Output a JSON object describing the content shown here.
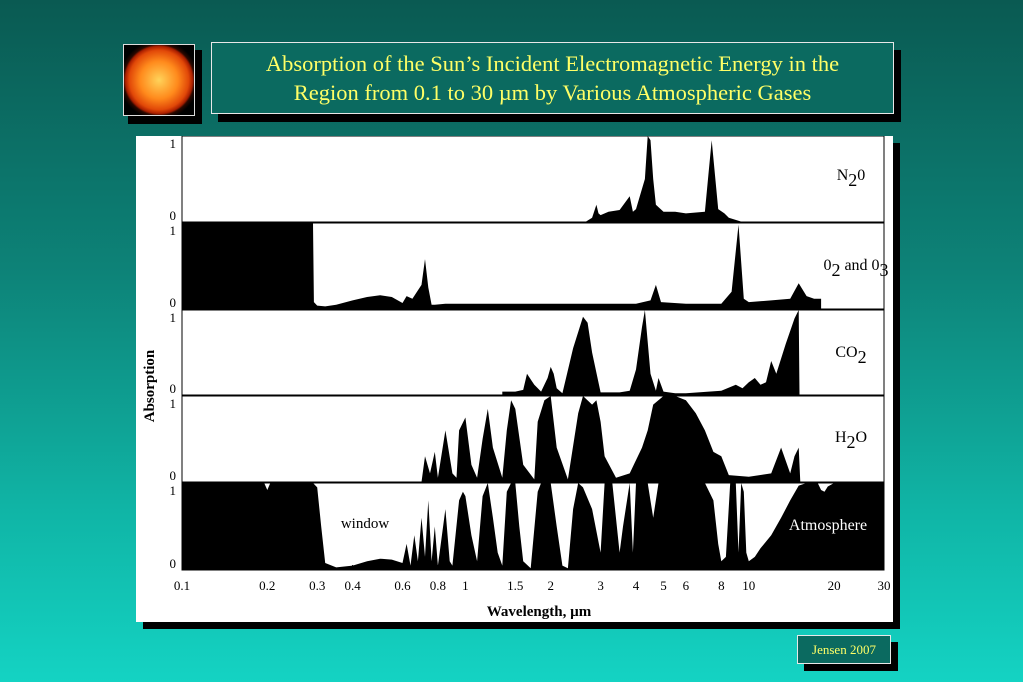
{
  "header": {
    "title_line1": "Absorption of the Sun’s Incident Electromagnetic Energy in the",
    "title_line2": "Region from 0.1 to 30 µm by Various Atmospheric Gases"
  },
  "credit": "Jensen 2007",
  "chart_data": {
    "type": "area",
    "title": "Absorption of the Sun’s Incident Electromagnetic Energy in the Region from 0.1 to 30 µm by Various Atmospheric Gases",
    "xlabel": "Wavelength, µm",
    "ylabel": "Absorption",
    "x_scale": "log",
    "xlim": [
      0.1,
      30
    ],
    "ylim": [
      0,
      1
    ],
    "x_ticks": [
      0.1,
      0.2,
      0.3,
      0.4,
      0.6,
      0.8,
      1,
      1.5,
      2,
      3,
      4,
      5,
      6,
      8,
      10,
      20,
      30
    ],
    "x_tick_labels": [
      "0.1",
      "0.2",
      "0.3",
      "0.4",
      "0.6",
      "0.8",
      "1",
      "1.5",
      "2",
      "3",
      "4",
      "5",
      "6",
      "8",
      "10",
      "20",
      "30"
    ],
    "y_tick_labels": [
      "0",
      "1"
    ],
    "annotation": "window",
    "series": [
      {
        "name": "N20",
        "sub": "2",
        "label_pre": "N",
        "label_post": "0",
        "x": [
          2.65,
          2.8,
          2.9,
          2.95,
          3.0,
          3.2,
          3.5,
          3.8,
          3.9,
          4.0,
          4.3,
          4.4,
          4.5,
          4.6,
          4.7,
          5.0,
          5.5,
          6.0,
          7.0,
          7.2,
          7.4,
          7.8,
          8.2,
          8.5,
          9.5
        ],
        "y": [
          0,
          0.05,
          0.2,
          0.1,
          0.08,
          0.12,
          0.14,
          0.3,
          0.12,
          0.15,
          0.5,
          1.0,
          0.95,
          0.5,
          0.2,
          0.12,
          0.12,
          0.1,
          0.12,
          0.55,
          0.95,
          0.15,
          0.1,
          0.05,
          0
        ]
      },
      {
        "name": "02 and 03",
        "label_pre": "0",
        "sub": "2",
        "label_mid": " and 0",
        "sub2": "3",
        "x": [
          0.1,
          0.29,
          0.292,
          0.3,
          0.32,
          0.35,
          0.4,
          0.45,
          0.5,
          0.55,
          0.6,
          0.62,
          0.65,
          0.7,
          0.72,
          0.74,
          0.76,
          0.78,
          0.85,
          1.0,
          1.5,
          2,
          3,
          4,
          4.5,
          4.7,
          4.9,
          6,
          8,
          8.7,
          9.2,
          9.6,
          10,
          12,
          14,
          15,
          16,
          17,
          18
        ],
        "y": [
          1.0,
          1.0,
          0.08,
          0.04,
          0.03,
          0.05,
          0.1,
          0.14,
          0.16,
          0.14,
          0.07,
          0.15,
          0.12,
          0.28,
          0.58,
          0.25,
          0.05,
          0.05,
          0.06,
          0.06,
          0.06,
          0.06,
          0.06,
          0.06,
          0.1,
          0.28,
          0.08,
          0.06,
          0.06,
          0.2,
          0.98,
          0.12,
          0.08,
          0.1,
          0.12,
          0.3,
          0.15,
          0.12,
          0.12
        ]
      },
      {
        "name": "CO2",
        "label_pre": "CO",
        "sub": "2",
        "x": [
          1.35,
          1.5,
          1.6,
          1.65,
          1.75,
          1.85,
          1.95,
          2.0,
          2.05,
          2.1,
          2.2,
          2.4,
          2.6,
          2.7,
          2.8,
          3.0,
          3.2,
          3.5,
          3.8,
          4.0,
          4.2,
          4.3,
          4.5,
          4.7,
          4.8,
          5.0,
          5.5,
          6.0,
          8.0,
          9.0,
          9.5,
          10,
          10.5,
          11,
          11.5,
          12,
          12.5,
          13.5,
          14.5,
          15,
          15.1
        ],
        "y": [
          0.04,
          0.04,
          0.06,
          0.25,
          0.12,
          0.04,
          0.2,
          0.33,
          0.25,
          0.08,
          0.02,
          0.55,
          0.92,
          0.85,
          0.5,
          0.03,
          0.03,
          0.03,
          0.05,
          0.3,
          0.8,
          1.0,
          0.25,
          0.05,
          0.2,
          0.04,
          0.02,
          0.02,
          0.05,
          0.12,
          0.08,
          0.15,
          0.2,
          0.12,
          0.15,
          0.4,
          0.25,
          0.6,
          0.9,
          1.0,
          0
        ]
      },
      {
        "name": "H2O",
        "label_pre": "H",
        "sub": "2",
        "label_post": "O",
        "x": [
          0.7,
          0.72,
          0.75,
          0.78,
          0.8,
          0.85,
          0.9,
          0.93,
          0.95,
          1.0,
          1.05,
          1.1,
          1.15,
          1.2,
          1.25,
          1.35,
          1.4,
          1.45,
          1.5,
          1.6,
          1.75,
          1.8,
          1.9,
          2.0,
          2.1,
          2.3,
          2.5,
          2.6,
          2.8,
          2.9,
          3.0,
          3.1,
          3.4,
          3.8,
          4.2,
          4.4,
          4.6,
          5.0,
          5.5,
          6.0,
          6.5,
          7.0,
          7.5,
          8.0,
          8.5,
          10,
          12,
          13,
          14,
          14.5,
          15,
          15.2
        ],
        "y": [
          0,
          0.3,
          0.1,
          0.35,
          0.05,
          0.6,
          0.1,
          0.05,
          0.6,
          0.75,
          0.2,
          0.05,
          0.5,
          0.85,
          0.4,
          0.05,
          0.6,
          0.95,
          0.85,
          0.2,
          0.03,
          0.7,
          0.95,
          1.0,
          0.4,
          0.03,
          0.8,
          1.0,
          0.9,
          0.95,
          0.7,
          0.3,
          0.05,
          0.1,
          0.4,
          0.6,
          0.9,
          1.0,
          1.0,
          0.95,
          0.8,
          0.6,
          0.35,
          0.3,
          0.08,
          0.06,
          0.1,
          0.4,
          0.1,
          0.3,
          0.4,
          0
        ]
      },
      {
        "name": "Atmosphere",
        "x": [
          0.1,
          0.195,
          0.2,
          0.205,
          0.29,
          0.3,
          0.31,
          0.32,
          0.35,
          0.4,
          0.45,
          0.5,
          0.55,
          0.6,
          0.62,
          0.64,
          0.66,
          0.68,
          0.7,
          0.72,
          0.74,
          0.76,
          0.78,
          0.8,
          0.85,
          0.88,
          0.9,
          0.95,
          0.98,
          1.0,
          1.05,
          1.1,
          1.15,
          1.2,
          1.25,
          1.3,
          1.35,
          1.4,
          1.45,
          1.5,
          1.55,
          1.6,
          1.7,
          1.8,
          1.85,
          1.9,
          2.0,
          2.1,
          2.2,
          2.3,
          2.4,
          2.5,
          2.6,
          2.8,
          3.0,
          3.1,
          3.3,
          3.5,
          3.6,
          3.8,
          3.9,
          4.0,
          4.2,
          4.4,
          4.6,
          4.8,
          5.0,
          5.5,
          6.0,
          7.0,
          7.5,
          7.8,
          8.0,
          8.3,
          8.6,
          9.0,
          9.2,
          9.4,
          9.6,
          9.8,
          10.0,
          10.5,
          11,
          12,
          13,
          14,
          15,
          16,
          17,
          17.5,
          18,
          18.5,
          19,
          20,
          30
        ],
        "y": [
          1.0,
          1.0,
          0.92,
          1.0,
          1.0,
          0.95,
          0.5,
          0.08,
          0.03,
          0.05,
          0.1,
          0.13,
          0.12,
          0.08,
          0.3,
          0.05,
          0.4,
          0.1,
          0.6,
          0.15,
          0.8,
          0.1,
          0.5,
          0.05,
          0.7,
          0.1,
          0.05,
          0.8,
          0.9,
          0.85,
          0.4,
          0.1,
          0.85,
          1.0,
          0.6,
          0.2,
          0.05,
          0.9,
          1.0,
          1.0,
          0.5,
          0.1,
          0.02,
          0.9,
          1.0,
          1.0,
          1.0,
          0.5,
          0.05,
          0.02,
          0.7,
          1.0,
          0.95,
          0.7,
          0.2,
          1.0,
          1.0,
          0.2,
          0.5,
          1.0,
          0.2,
          1.0,
          1.0,
          1.0,
          0.6,
          1.0,
          1.0,
          1.0,
          1.0,
          1.0,
          0.8,
          0.3,
          0.1,
          0.15,
          1.0,
          1.0,
          0.2,
          1.0,
          0.9,
          0.2,
          0.1,
          0.15,
          0.25,
          0.4,
          0.6,
          0.8,
          0.97,
          1.0,
          1.0,
          1.0,
          0.92,
          0.9,
          0.96,
          1.0,
          1.0
        ]
      }
    ]
  }
}
